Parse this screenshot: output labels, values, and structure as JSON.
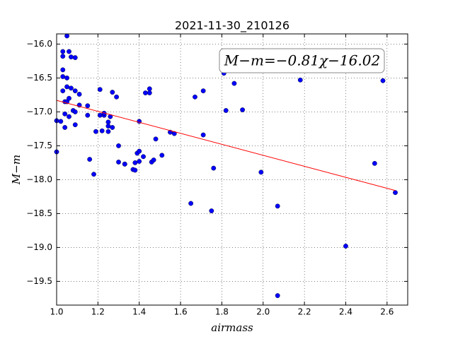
{
  "chart_data": {
    "type": "scatter",
    "title": "2021-11-30_210126",
    "x_label": "airmass",
    "y_label": "M−m",
    "annotation": "M−m=−0.81χ−16.02",
    "grid": true,
    "xlim": [
      1.0,
      2.7
    ],
    "ylim": [
      -19.85,
      -15.85
    ],
    "xticks": [
      {
        "value": 1.0,
        "label": "1.0"
      },
      {
        "value": 1.2,
        "label": "1.2"
      },
      {
        "value": 1.4,
        "label": "1.4"
      },
      {
        "value": 1.6,
        "label": "1.6"
      },
      {
        "value": 1.8,
        "label": "1.8"
      },
      {
        "value": 2.0,
        "label": "2.0"
      },
      {
        "value": 2.2,
        "label": "2.2"
      },
      {
        "value": 2.4,
        "label": "2.4"
      },
      {
        "value": 2.6,
        "label": "2.6"
      }
    ],
    "yticks": [
      {
        "value": -16.0,
        "label": "−16.0"
      },
      {
        "value": -16.5,
        "label": "−16.5"
      },
      {
        "value": -17.0,
        "label": "−17.0"
      },
      {
        "value": -17.5,
        "label": "−17.5"
      },
      {
        "value": -18.0,
        "label": "−18.0"
      },
      {
        "value": -18.5,
        "label": "−18.5"
      },
      {
        "value": -19.0,
        "label": "−19.0"
      },
      {
        "value": -19.5,
        "label": "−19.5"
      }
    ],
    "series": [
      {
        "type": "scatter",
        "color": "#0000ff",
        "x": [
          1.0,
          1.0,
          1.02,
          1.03,
          1.03,
          1.03,
          1.03,
          1.03,
          1.04,
          1.04,
          1.04,
          1.05,
          1.05,
          1.05,
          1.05,
          1.06,
          1.06,
          1.06,
          1.07,
          1.07,
          1.08,
          1.09,
          1.09,
          1.09,
          1.09,
          1.11,
          1.11,
          1.15,
          1.15,
          1.16,
          1.18,
          1.19,
          1.21,
          1.21,
          1.22,
          1.23,
          1.23,
          1.25,
          1.25,
          1.25,
          1.26,
          1.27,
          1.27,
          1.29,
          1.3,
          1.3,
          1.33,
          1.33,
          1.37,
          1.38,
          1.38,
          1.39,
          1.4,
          1.4,
          1.4,
          1.42,
          1.43,
          1.45,
          1.45,
          1.46,
          1.47,
          1.48,
          1.51,
          1.55,
          1.57,
          1.65,
          1.67,
          1.71,
          1.71,
          1.75,
          1.76,
          1.81,
          1.82,
          1.86,
          1.9,
          1.99,
          2.07,
          2.07,
          2.18,
          2.4,
          2.54,
          2.58,
          2.64
        ],
        "values": [
          -17.59,
          -17.13,
          -17.14,
          -16.38,
          -16.11,
          -16.18,
          -16.48,
          -16.69,
          -16.85,
          -17.03,
          -17.23,
          -16.5,
          -15.88,
          -16.85,
          -16.63,
          -16.11,
          -17.07,
          -16.8,
          -16.19,
          -16.65,
          -16.98,
          -17.19,
          -16.69,
          -17.0,
          -16.2,
          -16.9,
          -16.74,
          -16.91,
          -17.05,
          -17.7,
          -17.92,
          -17.29,
          -16.67,
          -17.05,
          -17.28,
          -17.05,
          -17.02,
          -17.15,
          -17.21,
          -17.29,
          -17.07,
          -17.23,
          -16.71,
          -16.78,
          -17.5,
          -17.74,
          -17.77,
          -17.77,
          -17.85,
          -17.75,
          -17.86,
          -17.61,
          -17.58,
          -17.73,
          -17.14,
          -17.66,
          -16.72,
          -16.66,
          -16.72,
          -17.74,
          -17.71,
          -17.4,
          -17.64,
          -17.3,
          -17.32,
          -18.35,
          -16.78,
          -16.69,
          -17.34,
          -18.46,
          -17.83,
          -16.43,
          -16.98,
          -16.58,
          -16.97,
          -17.89,
          -19.71,
          -18.39,
          -16.53,
          -18.98,
          -17.76,
          -16.54,
          -18.19
        ]
      },
      {
        "type": "line",
        "color": "#ff0000",
        "x": [
          1.0,
          2.64
        ],
        "values": [
          -16.83,
          -18.16
        ]
      }
    ]
  }
}
